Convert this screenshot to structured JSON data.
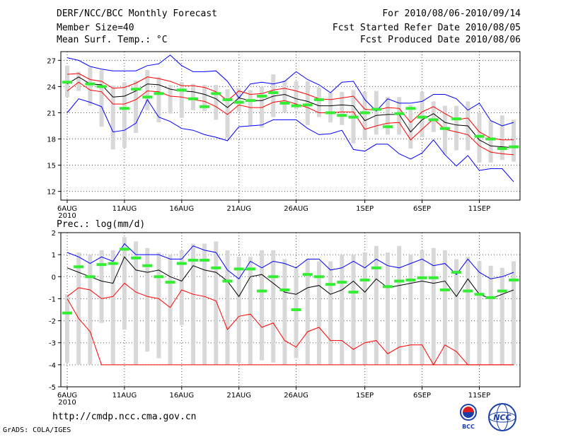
{
  "header": {
    "title": "DERF/NCC/BCC Monthly Forecast",
    "member_size": "Member Size=40",
    "variable": "Mean Surf. Temp.: °C",
    "period": "For 2010/08/06-2010/09/14",
    "started": "Fcst Started Refer Date 2010/08/05",
    "produced": "Fcst Produced Date 2010/08/06"
  },
  "footer": {
    "url": "http://cmdp.ncc.cma.gov.cn",
    "credit": "GrADS: COLA/IGES",
    "logo_left": "BCC",
    "logo_right": "NCC"
  },
  "colors": {
    "max_line": "#0000ff",
    "min_line": "#ff0000",
    "mean_line": "#000000",
    "ens_line": "#ff0000",
    "box": "#d8d8d8",
    "obs_mark": "#33ee33"
  },
  "chart_data": [
    {
      "type": "box",
      "title": "Mean Surf. Temp.: °C",
      "x_tick_labels": [
        "6AUG\n2010",
        "11AUG",
        "16AUG",
        "21AUG",
        "26AUG",
        "1SEP",
        "6SEP",
        "11SEP"
      ],
      "x_tick_days": [
        0,
        5,
        10,
        15,
        20,
        26,
        31,
        36
      ],
      "days": 40,
      "ylim": [
        11,
        28
      ],
      "yticks": [
        12,
        15,
        18,
        21,
        24,
        27
      ],
      "series": [
        {
          "name": "max",
          "values": [
            27.3,
            27,
            26.3,
            26,
            25.8,
            25.8,
            25.8,
            26.4,
            26.6,
            27.6,
            26.4,
            25.7,
            25.7,
            25.8,
            24.6,
            22.7,
            24.3,
            24.5,
            24.3,
            24.6,
            25.7,
            24.8,
            24.2,
            23.3,
            24.5,
            24.6,
            22.5,
            21.2,
            22.6,
            22.1,
            22.1,
            22.3,
            23.1,
            23.1,
            22.6,
            21.3,
            22.1,
            20.1,
            19.5,
            19.9
          ]
        },
        {
          "name": "upper",
          "values": [
            25.4,
            25.5,
            24.8,
            24.6,
            23.8,
            23.9,
            24.4,
            25.1,
            24.9,
            24.6,
            24.1,
            24.1,
            23.9,
            23.4,
            22.4,
            23.5,
            23.1,
            23.2,
            23.6,
            23.8,
            23.5,
            23.1,
            22.6,
            22.5,
            22.7,
            22.9,
            21.4,
            21.3,
            21.6,
            21.5,
            19.9,
            21.1,
            21.7,
            20.9,
            20.2,
            20.4,
            18.8,
            18.1,
            17.9,
            17.9
          ]
        },
        {
          "name": "mean",
          "values": [
            24.3,
            25.1,
            24.3,
            24.2,
            22.8,
            22.9,
            23.5,
            24.3,
            24.2,
            23.7,
            23.5,
            23.4,
            23.1,
            22.6,
            21.6,
            22.7,
            22.4,
            22.4,
            22.9,
            23.1,
            22.6,
            22.3,
            21.8,
            21.8,
            21.9,
            21.8,
            20.1,
            20.7,
            20.8,
            20.8,
            18.8,
            20.2,
            20.9,
            19.9,
            19.6,
            19.5,
            17.9,
            17.2,
            17.1,
            17
          ]
        },
        {
          "name": "lower",
          "values": [
            23.5,
            24.5,
            23.6,
            23.4,
            22,
            22,
            22.5,
            23.5,
            23.4,
            22.9,
            22.8,
            22.5,
            22.3,
            21.7,
            20.8,
            21.9,
            21.6,
            21.6,
            22.2,
            22.4,
            22,
            21.6,
            21,
            21,
            21.1,
            21.1,
            19.1,
            19.5,
            19.8,
            19.9,
            17.9,
            19.1,
            20.3,
            19.1,
            18.8,
            18.5,
            17.2,
            16.5,
            16.3,
            16.2
          ]
        },
        {
          "name": "min",
          "values": [
            21,
            22.6,
            22.2,
            21.7,
            18.8,
            19,
            19.8,
            22.5,
            20.5,
            20,
            19.2,
            19,
            18.5,
            18.2,
            17.8,
            19.4,
            19.5,
            19.6,
            20.2,
            20.2,
            20.2,
            19.2,
            18.5,
            18.6,
            19,
            16.8,
            16.6,
            17.4,
            17.4,
            16.3,
            15.7,
            16.4,
            17.9,
            16.2,
            14.9,
            16.1,
            14.4,
            14.6,
            14.6,
            13.1
          ]
        },
        {
          "name": "box_high",
          "values": [
            26.4,
            25.7,
            26.2,
            25.9,
            24.1,
            24.5,
            24.7,
            25.9,
            25.1,
            24.2,
            24.5,
            24.3,
            24.2,
            24.2,
            23.7,
            23.8,
            23.6,
            24,
            25.4,
            24.7,
            24.6,
            24.6,
            23.9,
            23.3,
            23.4,
            23.6,
            23.4,
            23.5,
            22.8,
            22.8,
            21.9,
            23.4,
            22.3,
            21.8,
            21.8,
            22.3,
            21,
            20.1,
            20.7,
            20.2
          ]
        },
        {
          "name": "box_low",
          "values": [
            22.8,
            23.5,
            21.8,
            19.4,
            16.8,
            17,
            18.7,
            21.3,
            19.9,
            20.9,
            20.4,
            21.3,
            21.2,
            20.2,
            18.1,
            21.1,
            19.5,
            19.3,
            20.5,
            21,
            21.4,
            19.6,
            20.5,
            19.9,
            19.6,
            17.5,
            17.9,
            18.5,
            18.5,
            18.5,
            16.9,
            18.2,
            18.8,
            16.2,
            16.7,
            16.7,
            15.3,
            15.3,
            15.6,
            15.4
          ]
        },
        {
          "name": "observed",
          "values": [
            24.5,
            null,
            24.3,
            24,
            null,
            21.5,
            23.7,
            22.8,
            23.2,
            null,
            23.6,
            22.6,
            21.7,
            23.2,
            22.5,
            22.2,
            22.4,
            22.9,
            23.3,
            22.1,
            21.8,
            21.9,
            22.5,
            21,
            20.7,
            20.5,
            21,
            21.4,
            19.4,
            20.9,
            21.5,
            20.5,
            20.2,
            19.2,
            20.3,
            null,
            18.3,
            18,
            16.9,
            17.1
          ]
        }
      ]
    },
    {
      "type": "box",
      "title": "Prec.: log(mm/d)",
      "x_tick_labels": [
        "6AUG\n2010",
        "11AUG",
        "16AUG",
        "21AUG",
        "26AUG",
        "1SEP",
        "6SEP",
        "11SEP"
      ],
      "x_tick_days": [
        0,
        5,
        10,
        15,
        20,
        26,
        31,
        36
      ],
      "days": 40,
      "ylim": [
        -5,
        2
      ],
      "yticks": [
        -5,
        -4,
        -3,
        -2,
        -1,
        0,
        1,
        2
      ],
      "series": [
        {
          "name": "max",
          "values": [
            1.1,
            0.9,
            0.6,
            0.9,
            0.7,
            1.5,
            1,
            1,
            1,
            0.8,
            0.8,
            1.4,
            1.2,
            1.1,
            0.3,
            -0.1,
            0.7,
            0.4,
            0.7,
            0.6,
            0.4,
            0.8,
            0.8,
            0.3,
            0.4,
            0.7,
            0.4,
            0.8,
            0.5,
            0.4,
            0.6,
            0.8,
            0.5,
            0.6,
            0.1,
            0.8,
            0.2,
            -0.1,
            0,
            0.2
          ]
        },
        {
          "name": "mean",
          "values": [
            0.4,
            0.2,
            0,
            -0.2,
            -0.3,
            0.9,
            0.3,
            0.2,
            0.3,
            0,
            -0.2,
            0.5,
            0.3,
            0.2,
            -0.2,
            -0.9,
            0,
            0.1,
            -0.3,
            -0.7,
            -0.8,
            -0.5,
            -0.4,
            -0.8,
            -0.6,
            -0.2,
            -0.7,
            -0.1,
            -0.5,
            -0.4,
            -0.3,
            -0.2,
            -0.3,
            -0.2,
            -0.9,
            -0.1,
            -0.8,
            -1,
            -0.8,
            -0.6
          ]
        },
        {
          "name": "min",
          "values": [
            -1,
            -1.9,
            -2.5,
            -4,
            -4,
            -4,
            -4,
            -4,
            -4,
            -4,
            -4,
            -4,
            -4,
            -4,
            -4,
            -4,
            -4,
            -4,
            -4,
            -4,
            -4,
            -4,
            -4,
            -4,
            -4,
            -4,
            -4,
            -4,
            -4,
            -4,
            -4,
            -4,
            -4,
            -4,
            -4,
            -4,
            -4,
            -4,
            -4,
            -4
          ]
        },
        {
          "name": "lower",
          "values": [
            -0.9,
            -0.5,
            -0.6,
            -1,
            -0.9,
            -0.3,
            -0.7,
            -0.9,
            -1,
            -1.4,
            -0.6,
            -0.8,
            -0.9,
            -1.1,
            -2.4,
            -1.8,
            -1.7,
            -2.3,
            -2.1,
            -2.9,
            -3.2,
            -2.5,
            -2.3,
            -2.9,
            -2.9,
            -3.3,
            -3,
            -2.9,
            -3.5,
            -3.2,
            -3.1,
            -3.1,
            -4,
            -3.1,
            -3.4,
            -4,
            -4,
            -4,
            -4,
            -4
          ]
        },
        {
          "name": "box_high",
          "values": [
            -0.8,
            1.1,
            1,
            1.2,
            1.2,
            1.8,
            1.6,
            1.3,
            1.1,
            1,
            1.2,
            1.5,
            1.5,
            1.6,
            1.2,
            0.9,
            0.9,
            1.2,
            1.2,
            0.8,
            0.4,
            0.8,
            0.7,
            0.7,
            1,
            1,
            1.1,
            1.4,
            1.1,
            1.4,
            1,
            1.2,
            1.3,
            1.2,
            0.8,
            0.9,
            0.7,
            0.5,
            0.4,
            0.7
          ]
        },
        {
          "name": "box_low",
          "values": [
            -3.9,
            -4,
            -4,
            -2.1,
            -4,
            -2.4,
            -4,
            -3.4,
            -3.7,
            -4,
            -2.2,
            -4,
            -4,
            -4,
            -4,
            -3.9,
            -4,
            -3.8,
            -3.9,
            -4,
            -3.7,
            -4,
            -4,
            -4,
            -4,
            -4,
            -4,
            -4,
            -4,
            -4,
            -4,
            -4,
            -4,
            -4,
            -4,
            -4,
            -4,
            -4,
            -4,
            -4
          ]
        },
        {
          "name": "observed",
          "values": [
            -1.65,
            0.45,
            0,
            0.55,
            0.6,
            1.25,
            0.85,
            0.5,
            0,
            -0.25,
            0.6,
            0.75,
            0.75,
            0.4,
            -0.2,
            0.35,
            0.35,
            -0.65,
            0,
            -0.6,
            -1.5,
            0.1,
            0,
            -0.35,
            -0.25,
            -0.7,
            -0.15,
            0.4,
            -0.45,
            -0.2,
            -0.15,
            -0.05,
            -0.05,
            -0.6,
            0.2,
            -0.65,
            -0.8,
            -0.95,
            -0.65,
            -0.15
          ]
        }
      ]
    }
  ]
}
